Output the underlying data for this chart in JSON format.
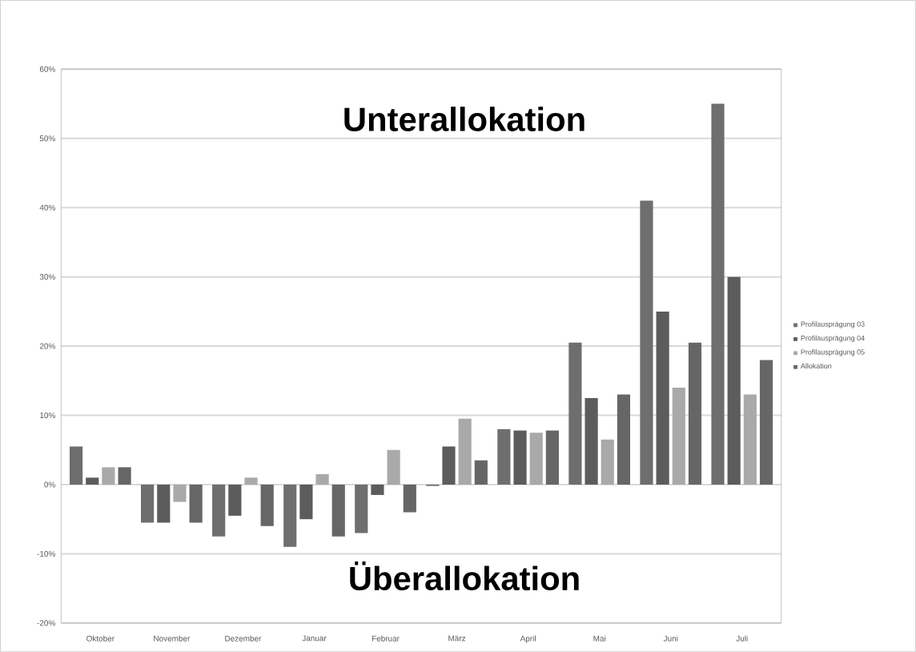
{
  "chart_data": {
    "type": "bar",
    "categories": [
      "Oktober",
      "November",
      "Dezember",
      "Januar",
      "Februar",
      "März",
      "April",
      "Mai",
      "Juni",
      "Juli"
    ],
    "series": [
      {
        "name": "Profilausprägung 03",
        "color": "#6e6e6e",
        "values": [
          5.5,
          -5.5,
          -7.5,
          -9,
          -7,
          -0.2,
          8,
          20.5,
          41,
          55
        ]
      },
      {
        "name": "Profilausprägung 04",
        "color": "#5c5c5c",
        "values": [
          1,
          -5.5,
          -4.5,
          -5,
          -1.5,
          5.5,
          7.8,
          12.5,
          25,
          30
        ]
      },
      {
        "name": "Profilausprägung 05",
        "color": "#a9a9a9",
        "values": [
          2.5,
          -2.5,
          1,
          1.5,
          5,
          9.5,
          7.5,
          6.5,
          14,
          13
        ]
      },
      {
        "name": "Allokation",
        "color": "#666666",
        "values": [
          2.5,
          -5.5,
          -6,
          -7.5,
          -4,
          3.5,
          7.8,
          13,
          20.5,
          18
        ]
      }
    ],
    "ylim": [
      -20,
      60
    ],
    "yticks": [
      {
        "value": -20,
        "label": "-20%"
      },
      {
        "value": -10,
        "label": "-10%"
      },
      {
        "value": 0,
        "label": "0%"
      },
      {
        "value": 10,
        "label": "10%"
      },
      {
        "value": 20,
        "label": "20%"
      },
      {
        "value": 30,
        "label": "30%"
      },
      {
        "value": 40,
        "label": "40%"
      },
      {
        "value": 50,
        "label": "50%"
      },
      {
        "value": 60,
        "label": "60%"
      }
    ],
    "grid": "y",
    "legend": "right",
    "annotations": [
      "Unterallokation",
      "Überallokation"
    ]
  }
}
